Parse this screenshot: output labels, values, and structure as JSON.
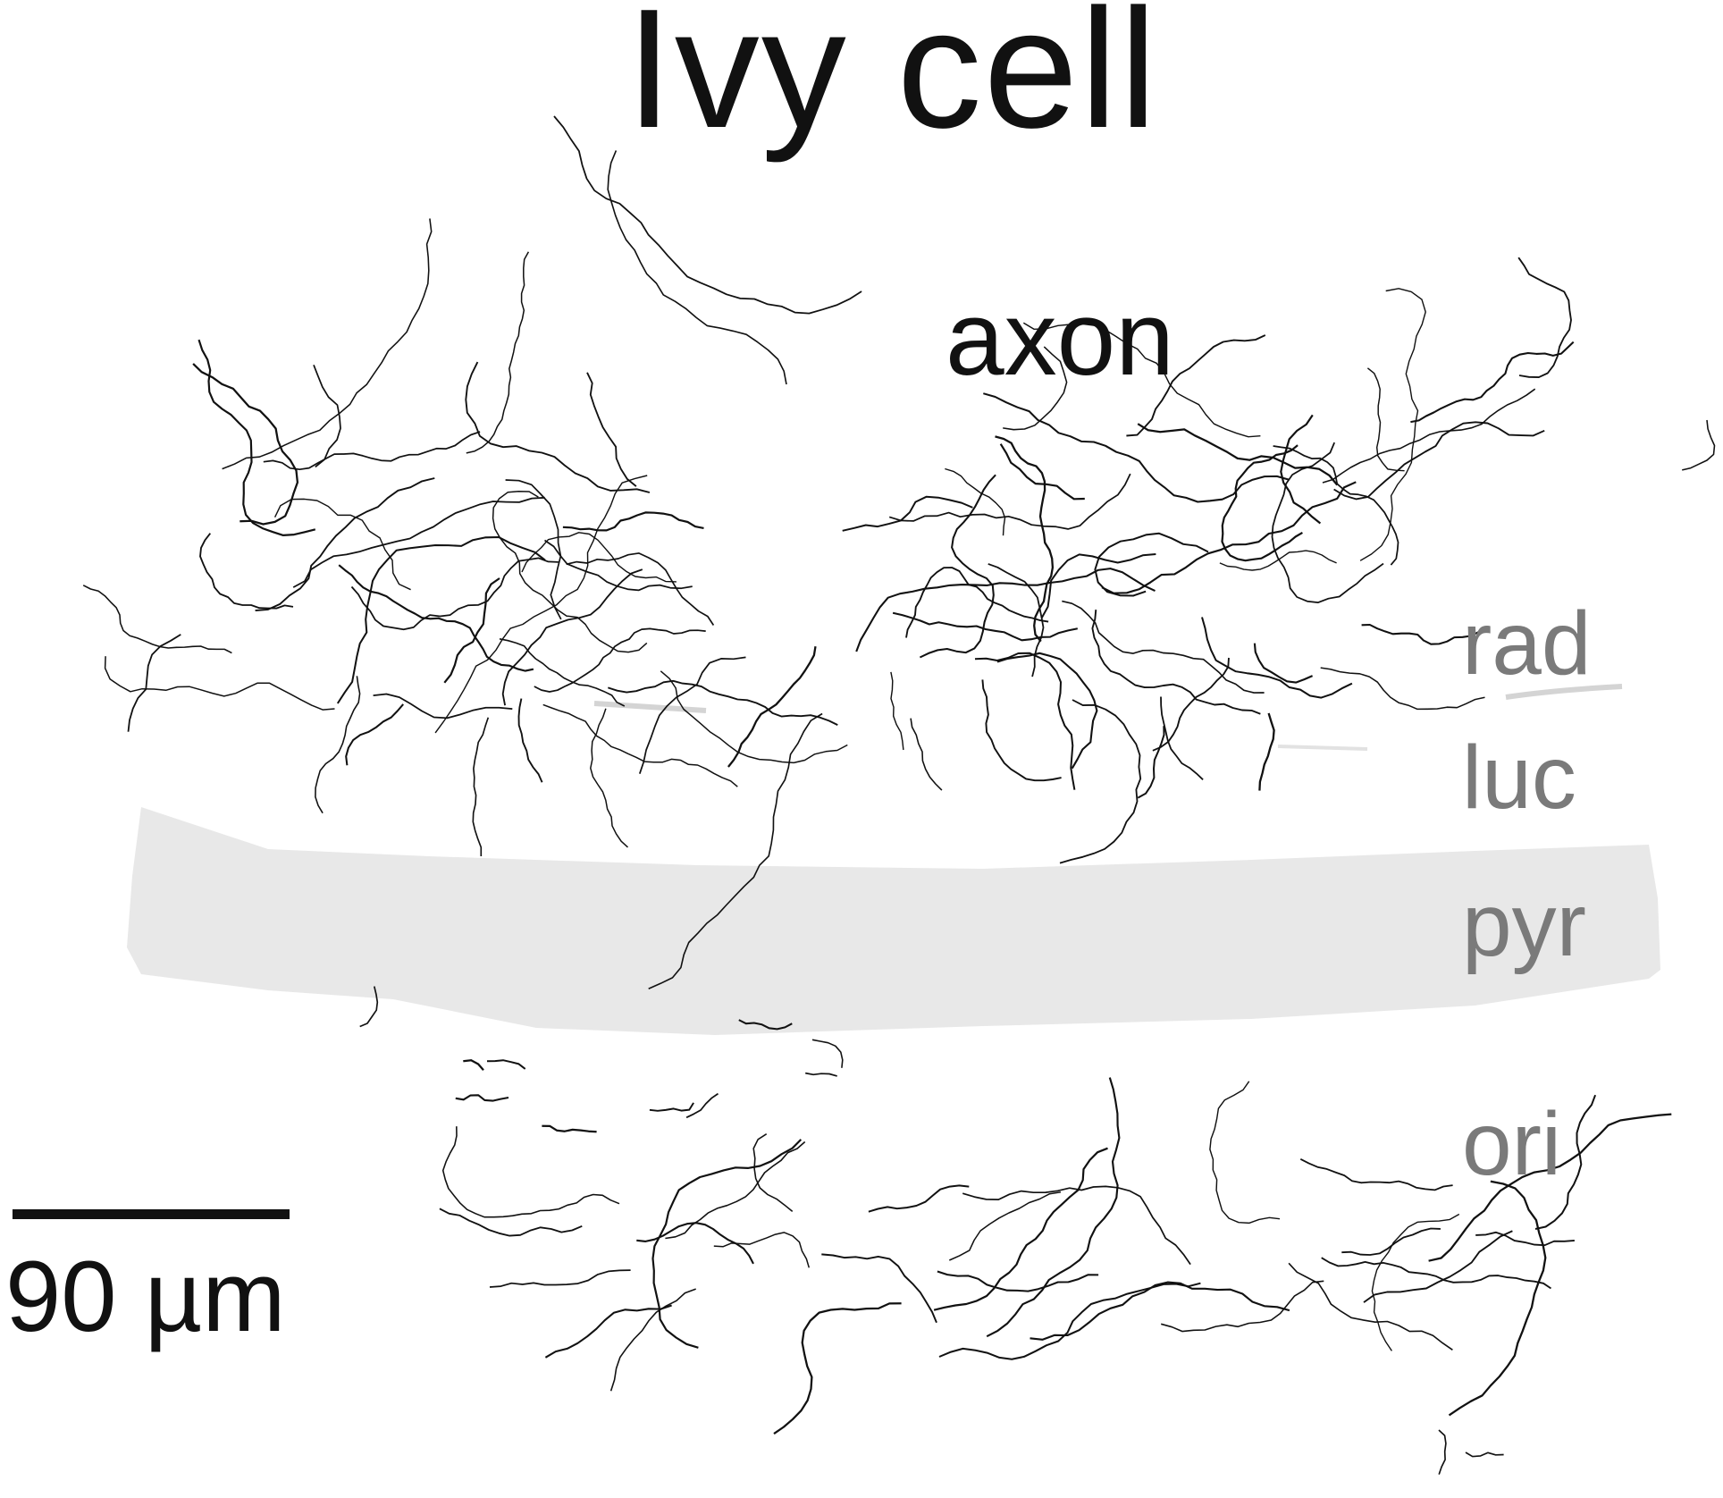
{
  "figure": {
    "title": "Ivy cell",
    "axon_label": "axon",
    "layers": [
      {
        "id": "rad",
        "label": "rad"
      },
      {
        "id": "luc",
        "label": "luc"
      },
      {
        "id": "pyr",
        "label": "pyr"
      },
      {
        "id": "ori",
        "label": "ori"
      }
    ],
    "scale_bar": {
      "label": "90 µm"
    },
    "colors": {
      "text": "#111111",
      "layer_label": "#7a7a7a",
      "pyramidal_band": "#e8e8e8",
      "boundary_line": "#d4d4d4",
      "axon_trace": "#111111"
    }
  }
}
